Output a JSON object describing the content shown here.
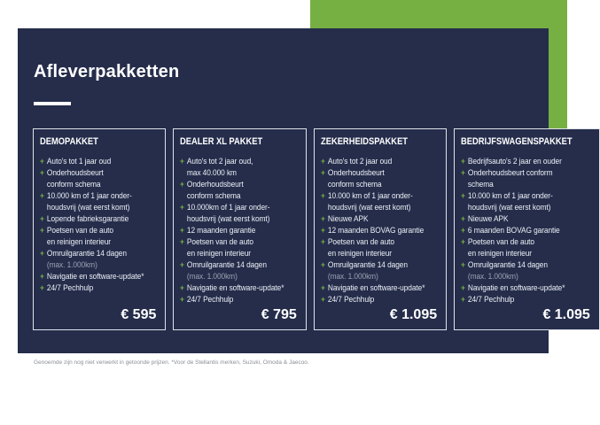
{
  "slide": {
    "title": "Afleverpakketten",
    "footnote": "Genoemde zijn nog niet verwerkt in getoonde prijzen. *Voor de Stellantis merken, Suzuki, Omoda & Jaecoo."
  },
  "colors": {
    "navy": "#252D4B",
    "green": "#76B043",
    "card_border": "#DFE3EA",
    "text": "#EDF0F5",
    "muted_text": "#9BA2B2"
  },
  "packages": [
    {
      "name": "DEMOPAKKET",
      "price": "€ 595",
      "items": [
        {
          "lines": [
            "Auto's tot 1 jaar oud"
          ]
        },
        {
          "lines": [
            "Onderhoudsbeurt",
            "conform schema"
          ]
        },
        {
          "lines": [
            "10.000 km of 1 jaar onder-",
            "houdsvrij (wat eerst komt)"
          ]
        },
        {
          "lines": [
            "Lopende fabrieksgarantie"
          ]
        },
        {
          "lines": [
            "Poetsen van de auto",
            "en reinigen interieur"
          ]
        },
        {
          "lines": [
            "Omruilgarantie 14 dagen",
            "(max. 1.000km)"
          ],
          "muted": [
            1
          ]
        },
        {
          "lines": [
            "Navigatie en software-update*"
          ]
        },
        {
          "lines": [
            "24/7 Pechhulp"
          ]
        }
      ]
    },
    {
      "name": "DEALER XL PAKKET",
      "price": "€ 795",
      "items": [
        {
          "lines": [
            "Auto's tot 2 jaar oud,",
            "max 40.000 km"
          ]
        },
        {
          "lines": [
            "Onderhoudsbeurt",
            "conform schema"
          ]
        },
        {
          "lines": [
            "10.000km of 1 jaar onder-",
            "houdsvrij (wat eerst komt)"
          ]
        },
        {
          "lines": [
            "12 maanden garantie"
          ]
        },
        {
          "lines": [
            "Poetsen van de auto",
            "en reinigen interieur"
          ]
        },
        {
          "lines": [
            "Omruilgarantie 14 dagen",
            "(max. 1.000km)"
          ],
          "muted": [
            1
          ]
        },
        {
          "lines": [
            "Navigatie en software-update*"
          ]
        },
        {
          "lines": [
            "24/7 Pechhulp"
          ]
        }
      ]
    },
    {
      "name": "ZEKERHEIDSPAKKET",
      "price": "€ 1.095",
      "items": [
        {
          "lines": [
            "Auto's tot 2 jaar oud"
          ]
        },
        {
          "lines": [
            "Onderhoudsbeurt",
            "conform schema"
          ]
        },
        {
          "lines": [
            "10.000 km of 1 jaar onder-",
            "houdsvrij (wat eerst komt)"
          ]
        },
        {
          "lines": [
            "Nieuwe APK"
          ]
        },
        {
          "lines": [
            "12 maanden BOVAG garantie"
          ]
        },
        {
          "lines": [
            "Poetsen van de auto",
            "en reinigen interieur"
          ]
        },
        {
          "lines": [
            "Omruilgarantie 14 dagen",
            "(max. 1.000km)"
          ],
          "muted": [
            1
          ]
        },
        {
          "lines": [
            "Navigatie en software-update*"
          ]
        },
        {
          "lines": [
            "24/7 Pechhulp"
          ]
        }
      ]
    },
    {
      "name": "BEDRIJFSWAGENSPAKKET",
      "price": "€ 1.095",
      "items": [
        {
          "lines": [
            "Bedrijfsauto's 2 jaar en ouder"
          ]
        },
        {
          "lines": [
            "Onderhoudsbeurt conform",
            "schema"
          ]
        },
        {
          "lines": [
            "10.000 km of 1 jaar onder-",
            "houdsvrij (wat eerst komt)"
          ]
        },
        {
          "lines": [
            "Nieuwe APK"
          ]
        },
        {
          "lines": [
            "6 maanden BOVAG garantie"
          ]
        },
        {
          "lines": [
            "Poetsen van de auto",
            "en reinigen interieur"
          ]
        },
        {
          "lines": [
            "Omruilgarantie 14 dagen",
            "(max. 1.000km)"
          ],
          "muted": [
            1
          ]
        },
        {
          "lines": [
            "Navigatie en software-update*"
          ]
        },
        {
          "lines": [
            "24/7 Pechhulp"
          ]
        }
      ]
    }
  ]
}
